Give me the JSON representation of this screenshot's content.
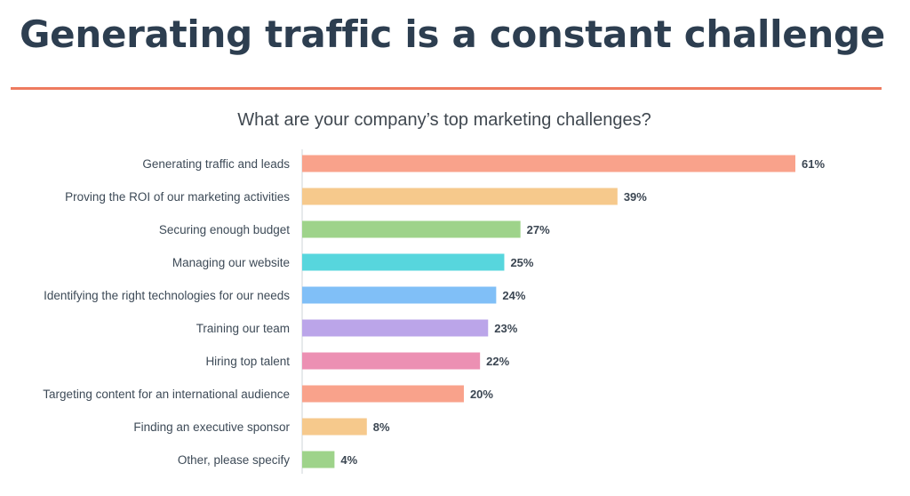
{
  "page": {
    "title": "Generating traffic is a constant challenge"
  },
  "colors": {
    "title": "#2d3e50",
    "rule": "#ee7b5f",
    "axis": "#cfd4d9",
    "label": "#3d4a57"
  },
  "chart_data": {
    "type": "bar",
    "orientation": "horizontal",
    "title": "What are your company’s top marketing challenges?",
    "categories": [
      "Generating traffic and leads",
      "Proving the ROI of our marketing activities",
      "Securing enough budget",
      "Managing our website",
      "Identifying the right technologies for our needs",
      "Training our team",
      "Hiring top talent",
      "Targeting content for an international audience",
      "Finding an executive sponsor",
      "Other, please specify"
    ],
    "values": [
      61,
      39,
      27,
      25,
      24,
      23,
      22,
      20,
      8,
      4
    ],
    "value_labels": [
      "61%",
      "39%",
      "27%",
      "25%",
      "24%",
      "23%",
      "22%",
      "20%",
      "8%",
      "4%"
    ],
    "bar_colors": [
      "#f9a28b",
      "#f6c98c",
      "#9ed38a",
      "#57d6dd",
      "#80bff7",
      "#bba5e9",
      "#ec90b3",
      "#f9a28b",
      "#f6c98c",
      "#9ed38a"
    ],
    "xlim": [
      0,
      61
    ],
    "xlabel": "",
    "ylabel": "",
    "grid": false,
    "legend": "none"
  }
}
